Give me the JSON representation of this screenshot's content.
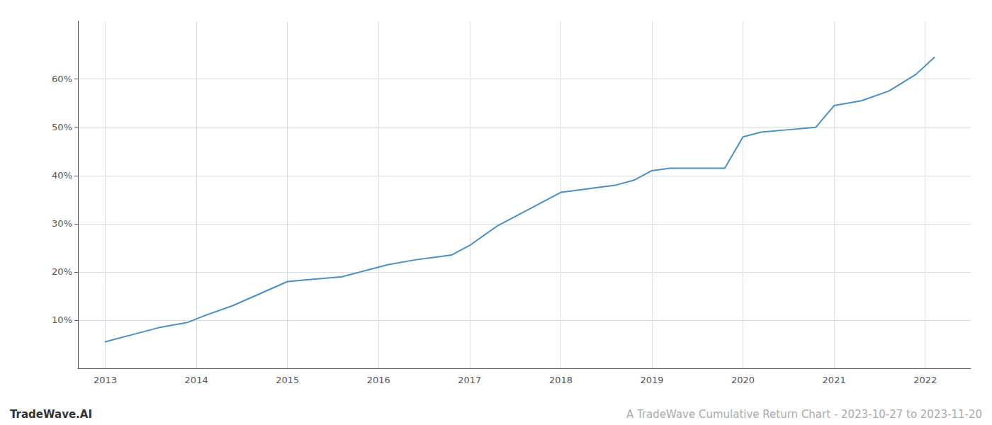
{
  "chart_data": {
    "type": "line",
    "x": [
      2013.0,
      2013.3,
      2013.6,
      2013.9,
      2014.1,
      2014.4,
      2014.7,
      2015.0,
      2015.3,
      2015.6,
      2015.9,
      2016.1,
      2016.4,
      2016.6,
      2016.8,
      2017.0,
      2017.15,
      2017.3,
      2017.5,
      2017.7,
      2017.85,
      2018.0,
      2018.2,
      2018.4,
      2018.6,
      2018.8,
      2019.0,
      2019.2,
      2019.5,
      2019.8,
      2020.0,
      2020.2,
      2020.5,
      2020.8,
      2021.0,
      2021.3,
      2021.6,
      2021.9,
      2022.1
    ],
    "values": [
      5.5,
      7.0,
      8.5,
      9.5,
      11.0,
      13.0,
      15.5,
      18.0,
      18.5,
      19.0,
      20.5,
      21.5,
      22.5,
      23.0,
      23.5,
      25.5,
      27.5,
      29.5,
      31.5,
      33.5,
      35.0,
      36.5,
      37.0,
      37.5,
      38.0,
      39.0,
      41.0,
      41.5,
      41.5,
      41.5,
      48.0,
      49.0,
      49.5,
      50.0,
      54.5,
      55.5,
      57.5,
      61.0,
      64.5
    ],
    "color": "#4a90c4",
    "xlim": [
      2012.7,
      2022.5
    ],
    "xticks": [
      2013,
      2014,
      2015,
      2016,
      2017,
      2018,
      2019,
      2020,
      2021,
      2022
    ],
    "ylim": [
      0,
      72
    ],
    "yticks": [
      {
        "value": 10,
        "label": "10%"
      },
      {
        "value": 20,
        "label": "20%"
      },
      {
        "value": 30,
        "label": "30%"
      },
      {
        "value": 40,
        "label": "40%"
      },
      {
        "value": 50,
        "label": "50%"
      },
      {
        "value": 60,
        "label": "60%"
      }
    ],
    "grid": true,
    "annotations": [
      "TradeWave.AI",
      "A TradeWave Cumulative Return Chart - 2023-10-27 to 2023-11-20"
    ]
  }
}
